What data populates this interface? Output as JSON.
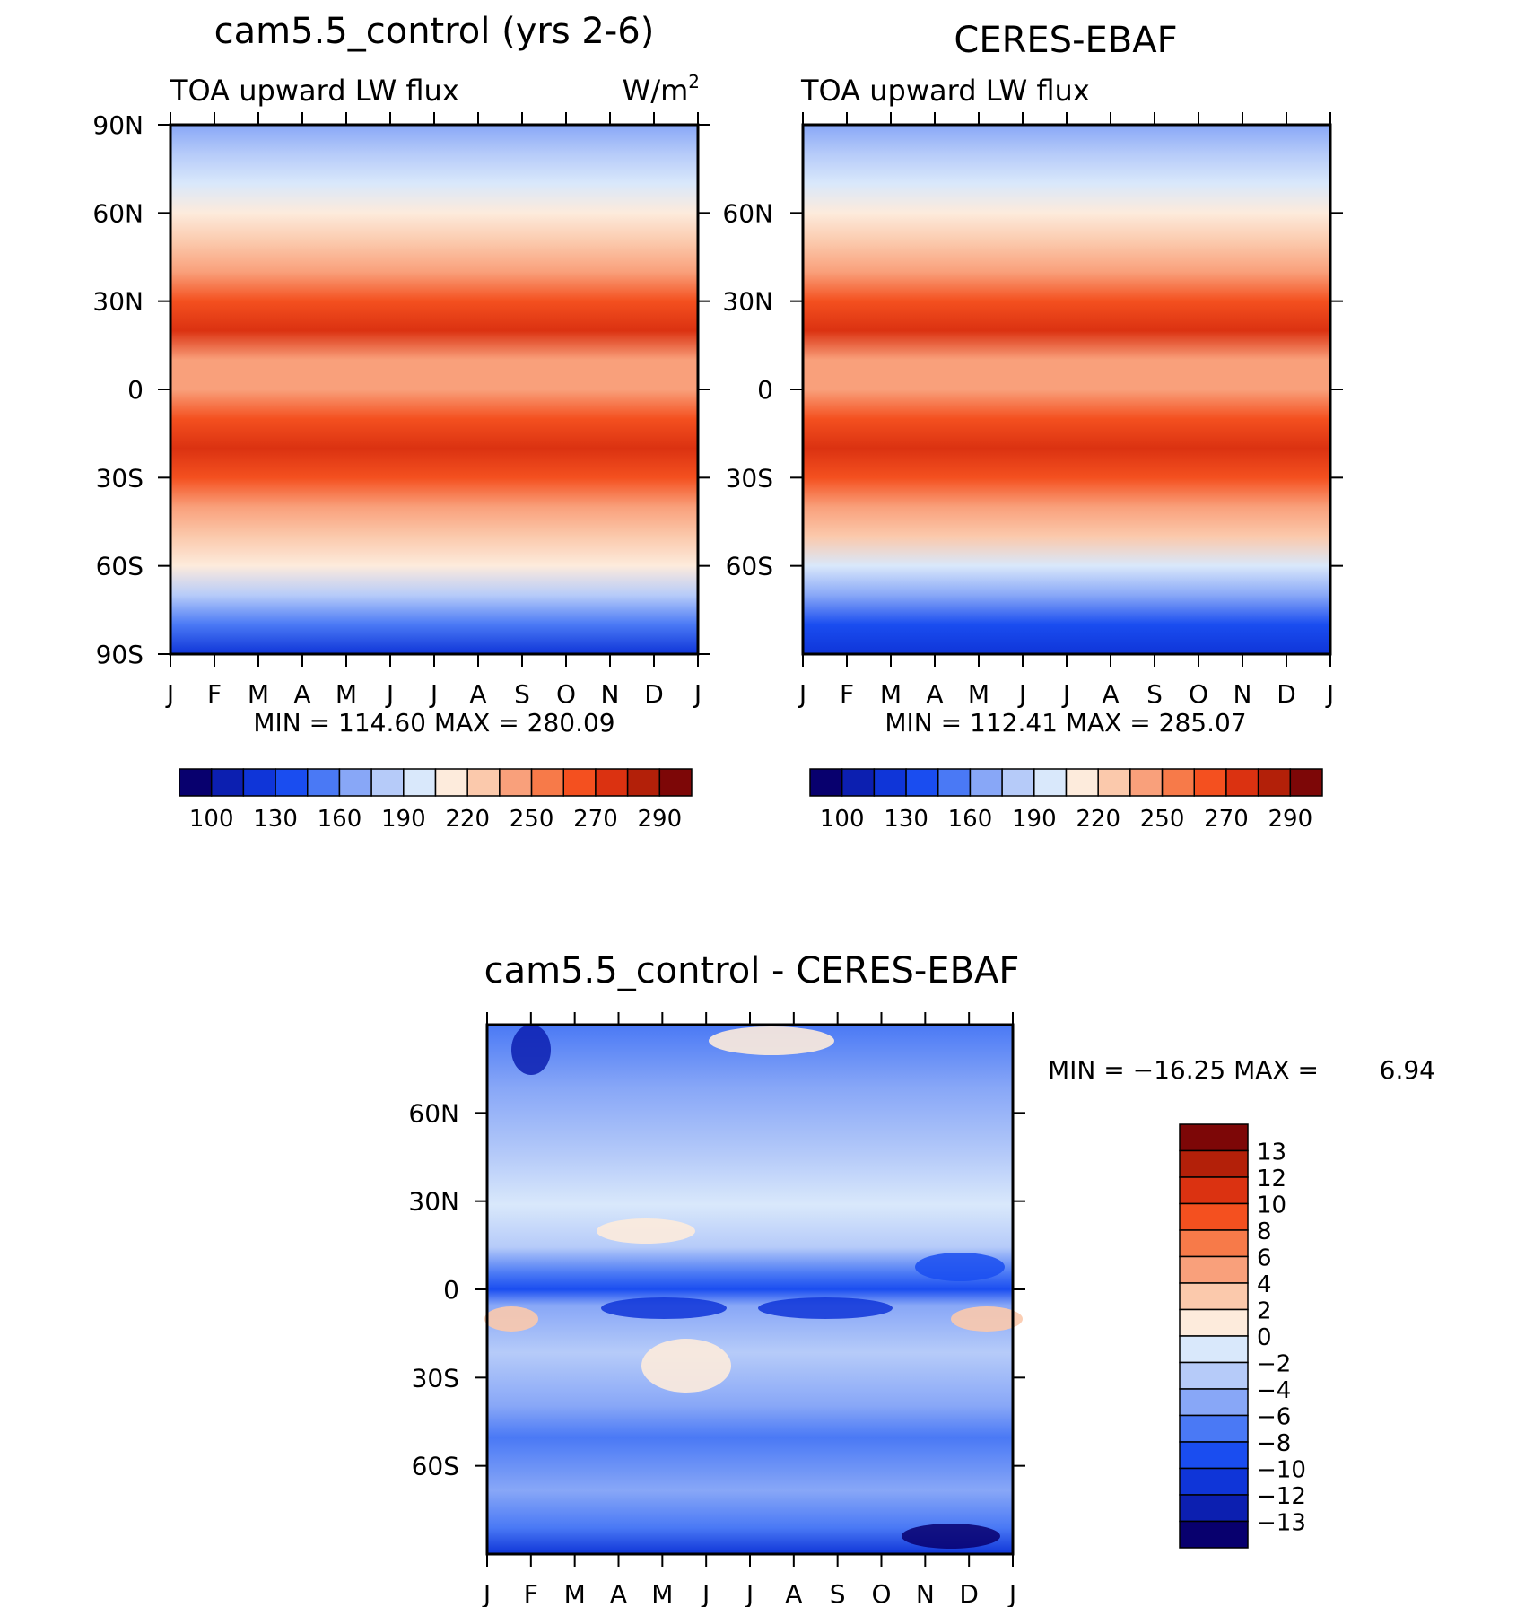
{
  "chart_data": [
    {
      "type": "heatmap",
      "title": "cam5.5_control (yrs 2-6)",
      "subtitle_left": "TOA upward LW flux",
      "units": "W/m",
      "units_sup": "2",
      "stats": "MIN = 114.60 MAX = 280.09",
      "x_ticks": [
        "J",
        "F",
        "M",
        "A",
        "M",
        "J",
        "J",
        "A",
        "S",
        "O",
        "N",
        "D",
        "J"
      ],
      "y_ticks": [
        "90N",
        "60N",
        "30N",
        "0",
        "30S",
        "60S",
        "90S"
      ],
      "ylim": [
        -90,
        90
      ],
      "colorbar": {
        "orientation": "horizontal",
        "labels": [
          "100",
          "130",
          "160",
          "190",
          "220",
          "250",
          "270",
          "290"
        ],
        "levels": [
          100,
          115,
          130,
          145,
          160,
          175,
          190,
          205,
          220,
          235,
          250,
          260,
          270,
          280,
          290
        ],
        "colors": [
          "#08006e",
          "#0c1fb0",
          "#0f35d8",
          "#1a4df0",
          "#4a79f5",
          "#88a7f7",
          "#b6cbf9",
          "#d9e8fb",
          "#fdebdc",
          "#fbc9ac",
          "#f9a07b",
          "#f77a49",
          "#f4501f",
          "#db3211",
          "#b32009",
          "#7d0707"
        ]
      },
      "zonal_profile": {
        "lat": [
          -90,
          -80,
          -70,
          -60,
          -50,
          -40,
          -30,
          -20,
          -10,
          0,
          10,
          20,
          30,
          40,
          50,
          60,
          70,
          80,
          90
        ],
        "values": [
          125,
          145,
          175,
          205,
          225,
          245,
          262,
          270,
          262,
          248,
          235,
          270,
          262,
          245,
          225,
          205,
          190,
          175,
          165
        ]
      }
    },
    {
      "type": "heatmap",
      "title": "CERES-EBAF",
      "subtitle_left": "TOA upward LW flux",
      "stats": "MIN = 112.41 MAX = 285.07",
      "x_ticks": [
        "J",
        "F",
        "M",
        "A",
        "M",
        "J",
        "J",
        "A",
        "S",
        "O",
        "N",
        "D",
        "J"
      ],
      "y_ticks": [
        "60N",
        "30N",
        "0",
        "30S",
        "60S"
      ],
      "ylim": [
        -90,
        90
      ],
      "colorbar": {
        "orientation": "horizontal",
        "labels": [
          "100",
          "130",
          "160",
          "190",
          "220",
          "250",
          "270",
          "290"
        ],
        "levels": [
          100,
          115,
          130,
          145,
          160,
          175,
          190,
          205,
          220,
          235,
          250,
          260,
          270,
          280,
          290
        ],
        "colors": [
          "#08006e",
          "#0c1fb0",
          "#0f35d8",
          "#1a4df0",
          "#4a79f5",
          "#88a7f7",
          "#b6cbf9",
          "#d9e8fb",
          "#fdebdc",
          "#fbc9ac",
          "#f9a07b",
          "#f77a49",
          "#f4501f",
          "#db3211",
          "#b32009",
          "#7d0707"
        ]
      },
      "zonal_profile": {
        "lat": [
          -90,
          -80,
          -70,
          -60,
          -50,
          -40,
          -30,
          -20,
          -10,
          0,
          10,
          20,
          30,
          40,
          50,
          60,
          70,
          80,
          90
        ],
        "values": [
          122,
          142,
          172,
          203,
          224,
          246,
          265,
          275,
          264,
          248,
          235,
          275,
          265,
          247,
          226,
          205,
          190,
          175,
          165
        ]
      }
    },
    {
      "type": "heatmap",
      "title": "cam5.5_control - CERES-EBAF",
      "stats_label": "MIN = −16.25 MAX =",
      "stats_value": "6.94",
      "x_ticks": [
        "J",
        "F",
        "M",
        "A",
        "M",
        "J",
        "J",
        "A",
        "S",
        "O",
        "N",
        "D",
        "J"
      ],
      "y_ticks": [
        "60N",
        "30N",
        "0",
        "30S",
        "60S"
      ],
      "ylim": [
        -90,
        90
      ],
      "colorbar": {
        "orientation": "vertical",
        "labels": [
          "13",
          "12",
          "10",
          "8",
          "6",
          "4",
          "2",
          "0",
          "−2",
          "−4",
          "−6",
          "−8",
          "−10",
          "−12",
          "−13"
        ],
        "colors": [
          "#7d0707",
          "#b32009",
          "#db3211",
          "#f4501f",
          "#f77a49",
          "#f9a07b",
          "#fbc9ac",
          "#fdebdc",
          "#d9e8fb",
          "#b6cbf9",
          "#88a7f7",
          "#4a79f5",
          "#1a4df0",
          "#0f35d8",
          "#0c1fb0",
          "#08006e"
        ]
      }
    }
  ]
}
